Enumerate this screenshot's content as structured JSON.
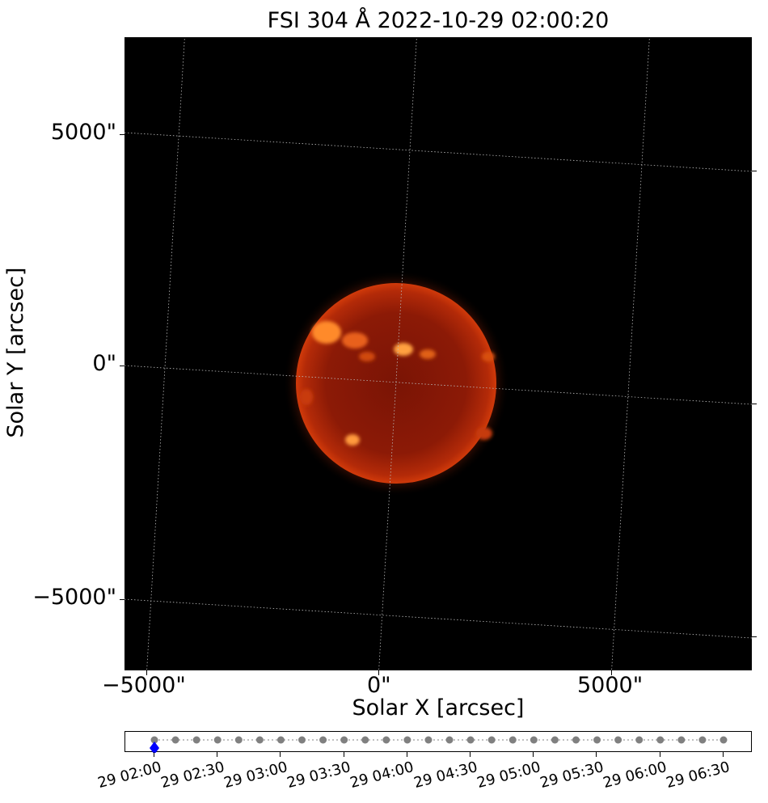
{
  "title": "FSI 304 Å 2022-10-29 02:00:20",
  "x_axis": {
    "label": "Solar X [arcsec]",
    "ticks": [
      "−5000\"",
      "0\"",
      "5000\""
    ]
  },
  "y_axis": {
    "label": "Solar Y [arcsec]",
    "ticks": [
      "5000\"",
      "0\"",
      "−5000\""
    ]
  },
  "colors": {
    "sun_core": "#b32a08",
    "sun_edge": "#5a0a00",
    "active_region": "#ff9a3c",
    "grid": "#bbbbbb",
    "timeline_point": "#808080",
    "current_marker": "#0000ff"
  },
  "timeline": {
    "labels": [
      "29 02:00",
      "29 02:30",
      "29 03:00",
      "29 03:30",
      "29 04:00",
      "29 04:30",
      "29 05:00",
      "29 05:30",
      "29 06:00",
      "29 06:30"
    ],
    "point_count": 28,
    "current_index": 0
  }
}
